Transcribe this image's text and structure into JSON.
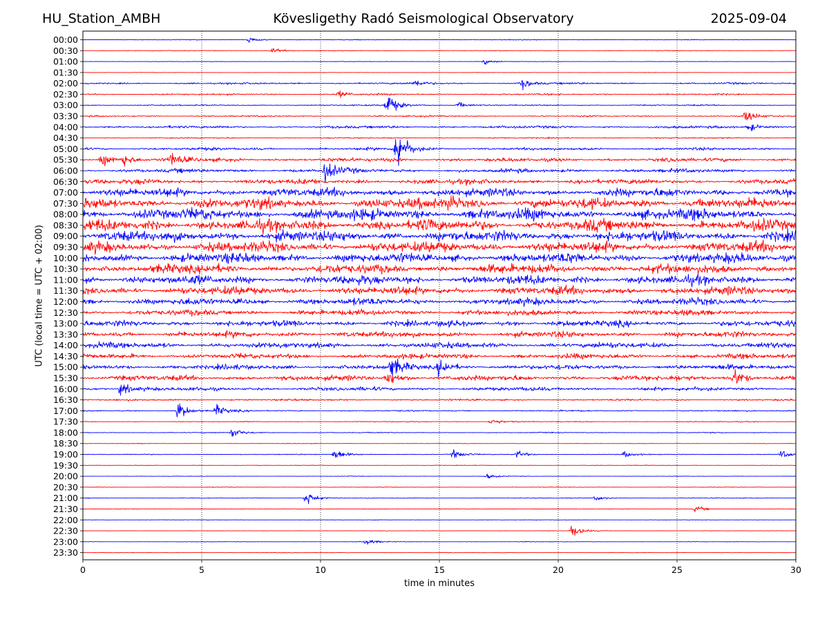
{
  "header": {
    "station": "HU_Station_AMBH",
    "observatory": "Kövesligethy Radó Seismological Observatory",
    "date": "2025-09-04"
  },
  "chart_data": {
    "type": "line",
    "title": "Kövesligethy Radó Seismological Observatory",
    "xlabel": "time in minutes",
    "ylabel": "UTC (local time = UTC + 02:00)",
    "xlim": [
      0,
      30
    ],
    "xticks": [
      "0",
      "5",
      "10",
      "15",
      "20",
      "25",
      "30"
    ],
    "grid": "vertical dotted at each x tick",
    "rows": [
      "00:00",
      "00:30",
      "01:00",
      "01:30",
      "02:00",
      "02:30",
      "03:00",
      "03:30",
      "04:00",
      "04:30",
      "05:00",
      "05:30",
      "06:00",
      "06:30",
      "07:00",
      "07:30",
      "08:00",
      "08:30",
      "09:00",
      "09:30",
      "10:00",
      "10:30",
      "11:00",
      "11:30",
      "12:00",
      "12:30",
      "13:00",
      "13:30",
      "14:00",
      "14:30",
      "15:00",
      "15:30",
      "16:00",
      "16:30",
      "17:00",
      "17:30",
      "18:00",
      "18:30",
      "19:00",
      "19:30",
      "20:00",
      "20:30",
      "21:00",
      "21:30",
      "22:00",
      "22:30",
      "23:00",
      "23:30"
    ],
    "series_colors": [
      "#0000ff",
      "#ff0000"
    ],
    "noise_level": [
      0.08,
      0.08,
      0.06,
      0.05,
      0.2,
      0.18,
      0.14,
      0.16,
      0.28,
      0.14,
      0.3,
      0.42,
      0.42,
      0.55,
      0.9,
      1.1,
      1.2,
      1.2,
      1.15,
      1.15,
      1.05,
      1.0,
      0.95,
      0.9,
      0.75,
      0.62,
      0.65,
      0.65,
      0.62,
      0.55,
      0.55,
      0.58,
      0.42,
      0.2,
      0.15,
      0.1,
      0.1,
      0.06,
      0.1,
      0.06,
      0.05,
      0.07,
      0.07,
      0.06,
      0.05,
      0.05,
      0.06,
      0.05
    ],
    "events": [
      {
        "row": 0,
        "t": 7.0,
        "amp": 0.8
      },
      {
        "row": 1,
        "t": 8.0,
        "amp": 0.6
      },
      {
        "row": 2,
        "t": 16.9,
        "amp": 0.6
      },
      {
        "row": 4,
        "t": 14.0,
        "amp": 0.8
      },
      {
        "row": 4,
        "t": 18.5,
        "amp": 1.2
      },
      {
        "row": 5,
        "t": 10.8,
        "amp": 0.8
      },
      {
        "row": 6,
        "t": 15.8,
        "amp": 0.7
      },
      {
        "row": 6,
        "t": 12.8,
        "amp": 3.0
      },
      {
        "row": 7,
        "t": 27.9,
        "amp": 1.4
      },
      {
        "row": 8,
        "t": 28.0,
        "amp": 1.2
      },
      {
        "row": 10,
        "t": 13.2,
        "amp": 6.0
      },
      {
        "row": 11,
        "t": 0.8,
        "amp": 1.6
      },
      {
        "row": 11,
        "t": 1.7,
        "amp": 1.4
      },
      {
        "row": 11,
        "t": 3.7,
        "amp": 1.4
      },
      {
        "row": 12,
        "t": 10.2,
        "amp": 2.5
      },
      {
        "row": 15,
        "t": 15.4,
        "amp": 2.0
      },
      {
        "row": 30,
        "t": 13.0,
        "amp": 2.2
      },
      {
        "row": 30,
        "t": 15.0,
        "amp": 2.0
      },
      {
        "row": 31,
        "t": 12.8,
        "amp": 2.0
      },
      {
        "row": 31,
        "t": 27.4,
        "amp": 2.2
      },
      {
        "row": 32,
        "t": 1.6,
        "amp": 1.6
      },
      {
        "row": 34,
        "t": 4.0,
        "amp": 2.2
      },
      {
        "row": 34,
        "t": 5.6,
        "amp": 1.4
      },
      {
        "row": 35,
        "t": 17.2,
        "amp": 0.9
      },
      {
        "row": 36,
        "t": 6.3,
        "amp": 1.2
      },
      {
        "row": 38,
        "t": 10.6,
        "amp": 1.4
      },
      {
        "row": 38,
        "t": 15.6,
        "amp": 1.0
      },
      {
        "row": 38,
        "t": 18.3,
        "amp": 0.9
      },
      {
        "row": 38,
        "t": 22.8,
        "amp": 0.7
      },
      {
        "row": 38,
        "t": 29.4,
        "amp": 1.0
      },
      {
        "row": 40,
        "t": 17.0,
        "amp": 0.6
      },
      {
        "row": 42,
        "t": 9.4,
        "amp": 1.8
      },
      {
        "row": 42,
        "t": 21.6,
        "amp": 0.7
      },
      {
        "row": 43,
        "t": 25.8,
        "amp": 0.8
      },
      {
        "row": 45,
        "t": 20.6,
        "amp": 1.6
      },
      {
        "row": 46,
        "t": 11.9,
        "amp": 0.8
      }
    ]
  }
}
